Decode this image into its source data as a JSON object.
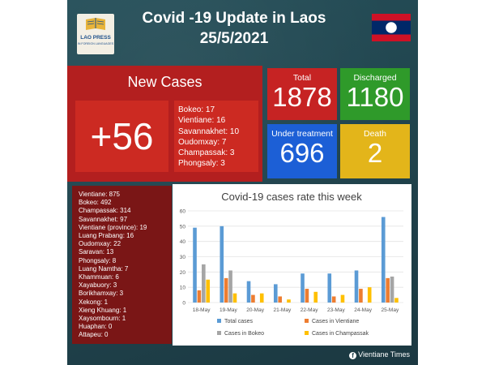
{
  "header": {
    "logo_text": "LAO PRESS",
    "logo_subtext": "IN FOREIGN LANGUAGES",
    "title_line1": "Covid -19 Update in Laos",
    "title_line2": "25/5/2021"
  },
  "new_cases": {
    "title": "New Cases",
    "count": "+56",
    "list": [
      "Bokeo: 17",
      "Vientiane: 16",
      "Savannakhet: 10",
      "Oudomxay: 7",
      "Champassak: 3",
      "Phongsaly: 3"
    ]
  },
  "stats": {
    "total": {
      "label": "Total",
      "value": "1878"
    },
    "discharged": {
      "label": "Discharged",
      "value": "1180"
    },
    "treatment": {
      "label": "Under treatment",
      "value": "696"
    },
    "death": {
      "label": "Death",
      "value": "2"
    }
  },
  "provinces": [
    "Vientiane: 875",
    "Bokeo: 492",
    "Champassak: 314",
    "Savannakhet: 97",
    "Vientiane (province): 19",
    "Luang Prabang: 16",
    "Oudomxay: 22",
    "Saravan: 13",
    "Phongsaly: 8",
    "Luang Namtha: 7",
    "Khammuan: 6",
    "Xayabuory: 3",
    "Borikhamxay: 3",
    "Xekong: 1",
    "Xieng Khuang: 1",
    "Xaysombourn: 1",
    "Huaphan: 0",
    "Attapeu: 0"
  ],
  "footer": {
    "icon": "facebook-icon",
    "text": "Vientiane Times"
  },
  "colors": {
    "total_series": "#5b9bd5",
    "vientiane_series": "#ed7d31",
    "bokeo_series": "#a5a5a5",
    "champassak_series": "#ffc000"
  },
  "chart_data": {
    "type": "bar",
    "title": "Covid-19 cases rate this week",
    "categories": [
      "18-May",
      "19-May",
      "20-May",
      "21-May",
      "22-May",
      "23-May",
      "24-May",
      "25-May"
    ],
    "ylim": [
      0,
      60
    ],
    "yticks": [
      0,
      10,
      20,
      30,
      40,
      50,
      60
    ],
    "grid": true,
    "legend_position": "bottom",
    "series": [
      {
        "name": "Total cases",
        "values": [
          49,
          50,
          14,
          12,
          19,
          19,
          21,
          56
        ]
      },
      {
        "name": "Cases in Vientiane",
        "values": [
          8,
          16,
          5,
          4,
          9,
          4,
          9,
          16
        ]
      },
      {
        "name": "Cases in Bokeo",
        "values": [
          25,
          21,
          0,
          0,
          0,
          0,
          0,
          17
        ]
      },
      {
        "name": "Cases in Champassak",
        "values": [
          15,
          6,
          6,
          2,
          7,
          5,
          10,
          3
        ]
      }
    ]
  }
}
